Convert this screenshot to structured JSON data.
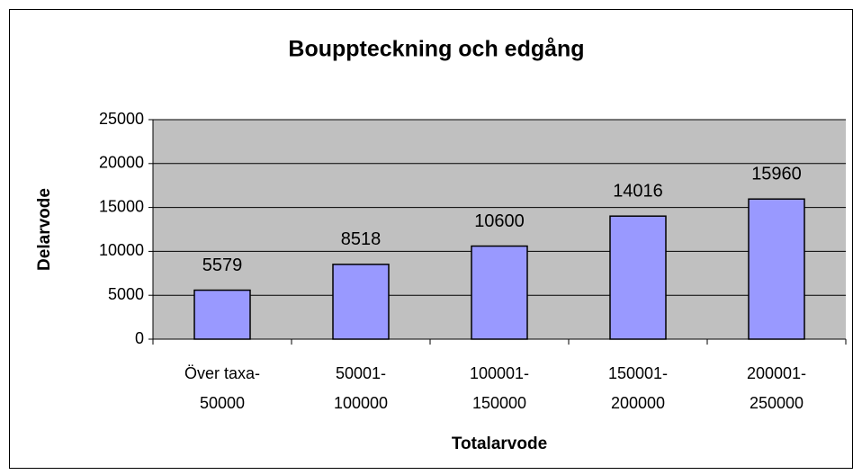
{
  "chart_data": {
    "type": "bar",
    "title": "Bouppteckning och edgång",
    "x_label": "Totalarvode",
    "y_label": "Delarvode",
    "categories": [
      "Över taxa-50000",
      "50001-100000",
      "100001-150000",
      "150001-200000",
      "200001-250000"
    ],
    "values": [
      5579,
      8518,
      10600,
      14016,
      15960
    ],
    "color": "#9999ff",
    "ylim": [
      0,
      25000
    ],
    "yticks": [
      0,
      5000,
      10000,
      15000,
      20000,
      25000
    ],
    "grid": true
  }
}
